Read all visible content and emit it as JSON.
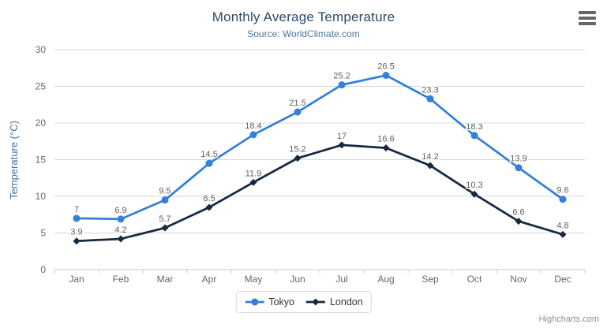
{
  "chart": {
    "title": "Monthly Average Temperature",
    "subtitle": "Source: WorldClimate.com",
    "credits": "Highcharts.com"
  },
  "chart_data": {
    "type": "line",
    "title": "Monthly Average Temperature",
    "subtitle": "Source: WorldClimate.com",
    "categories": [
      "Jan",
      "Feb",
      "Mar",
      "Apr",
      "May",
      "Jun",
      "Jul",
      "Aug",
      "Sep",
      "Oct",
      "Nov",
      "Dec"
    ],
    "series": [
      {
        "name": "Tokyo",
        "color": "#3380d8",
        "marker": "circle",
        "values": [
          7,
          6.9,
          9.5,
          14.5,
          18.4,
          21.5,
          25.2,
          26.5,
          23.3,
          18.3,
          13.9,
          9.6
        ]
      },
      {
        "name": "London",
        "color": "#16293f",
        "marker": "diamond",
        "values": [
          3.9,
          4.2,
          5.7,
          8.5,
          11.9,
          15.2,
          17,
          16.6,
          14.2,
          10.3,
          6.6,
          4.8
        ]
      }
    ],
    "xlabel": "",
    "ylabel": "Temperature (°C)",
    "ylim": [
      0,
      30
    ],
    "ytick_step": 5,
    "grid": true,
    "data_labels": true,
    "legend_position": "bottom",
    "colors": {
      "title": "#274b6d",
      "subtitle": "#4d759e",
      "axis_title": "#4572a7",
      "tick_label": "#666666",
      "gridline": "#d8d8d8",
      "axis_line": "#c0d0e0",
      "data_label": "#606060"
    }
  }
}
